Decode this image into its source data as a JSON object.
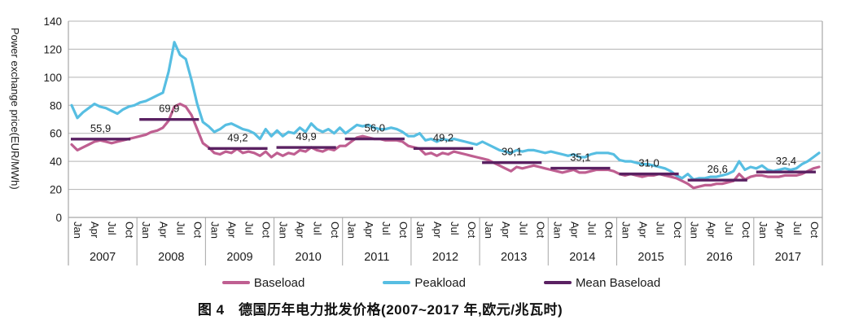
{
  "caption": {
    "text": "图 4　德国历年电力批发价格(2007~2017 年,欧元/兆瓦时)"
  },
  "chart_data": {
    "type": "line",
    "title": "图 4 德国历年电力批发价格(2007~2017 年,欧元/兆瓦时)",
    "ylabel": "Power exchange price(EUR/MWh)",
    "ylim": [
      0,
      140
    ],
    "y_ticks": [
      0,
      20,
      40,
      60,
      80,
      100,
      120,
      140
    ],
    "grid": true,
    "legend_position": "bottom",
    "years": [
      2007,
      2008,
      2009,
      2010,
      2011,
      2012,
      2013,
      2014,
      2015,
      2016,
      2017
    ],
    "month_tick_labels": [
      "Jan",
      "Apr",
      "Jul",
      "Oct"
    ],
    "x_unit": "month",
    "series": [
      {
        "name": "Baseload",
        "color": "#bf5f91",
        "values": [
          52,
          48,
          50,
          52,
          54,
          55,
          54,
          53,
          54,
          55,
          56,
          57,
          58,
          59,
          61,
          62,
          64,
          69,
          79,
          81,
          79,
          73,
          63,
          53,
          50,
          46,
          45,
          47,
          46,
          49,
          46,
          47,
          46,
          44,
          47,
          43,
          46,
          44,
          46,
          45,
          48,
          47,
          50,
          48,
          47,
          49,
          48,
          51,
          51,
          54,
          57,
          58,
          57,
          56,
          56,
          55,
          55,
          55,
          54,
          51,
          50,
          49,
          45,
          46,
          44,
          46,
          45,
          47,
          46,
          45,
          44,
          43,
          42,
          41,
          39,
          37,
          35,
          33,
          36,
          35,
          36,
          37,
          36,
          35,
          34,
          33,
          32,
          33,
          34,
          32,
          32,
          33,
          34,
          34,
          34,
          33,
          31,
          30,
          31,
          30,
          29,
          30,
          30,
          31,
          30,
          29,
          28,
          26,
          24,
          21,
          22,
          23,
          23,
          24,
          24,
          25,
          26,
          31,
          27,
          29,
          30,
          30,
          29,
          29,
          29,
          30,
          30,
          30,
          31,
          33,
          35,
          36
        ]
      },
      {
        "name": "Peakload",
        "color": "#57bee2",
        "values": [
          80,
          71,
          75,
          78,
          81,
          79,
          78,
          76,
          74,
          77,
          79,
          80,
          82,
          83,
          85,
          87,
          89,
          104,
          125,
          116,
          113,
          98,
          81,
          68,
          65,
          61,
          63,
          66,
          67,
          65,
          63,
          62,
          60,
          56,
          63,
          58,
          62,
          58,
          61,
          60,
          64,
          61,
          67,
          63,
          61,
          63,
          60,
          64,
          60,
          63,
          66,
          65,
          66,
          64,
          63,
          63,
          64,
          63,
          61,
          58,
          58,
          60,
          55,
          56,
          54,
          56,
          55,
          56,
          55,
          54,
          53,
          52,
          54,
          52,
          50,
          48,
          47,
          46,
          48,
          47,
          48,
          48,
          47,
          46,
          47,
          46,
          45,
          44,
          45,
          43,
          43,
          45,
          46,
          46,
          46,
          45,
          41,
          40,
          40,
          39,
          38,
          38,
          37,
          36,
          35,
          33,
          30,
          28,
          31,
          27,
          28,
          28,
          29,
          29,
          30,
          31,
          33,
          40,
          34,
          36,
          35,
          37,
          34,
          33,
          34,
          35,
          34,
          35,
          38,
          40,
          43,
          46
        ]
      },
      {
        "name": "Mean Baseload",
        "color": "#5a2162",
        "yearly_values": [
          55.9,
          69.9,
          49.2,
          49.9,
          56.0,
          49.2,
          39.1,
          35.1,
          31.0,
          26.6,
          32.4
        ],
        "yearly_labels": [
          "55,9",
          "69,9",
          "49,2",
          "49,9",
          "56,0",
          "49,2",
          "39,1",
          "35,1",
          "31,0",
          "26,6",
          "32,4"
        ]
      }
    ],
    "annotations_note": "yearly mean values are printed above each mean segment, comma decimal separator"
  },
  "colors": {
    "gridline": "#b3b3b3",
    "axis": "#a6a6a6",
    "text": "#1a1a1a"
  }
}
